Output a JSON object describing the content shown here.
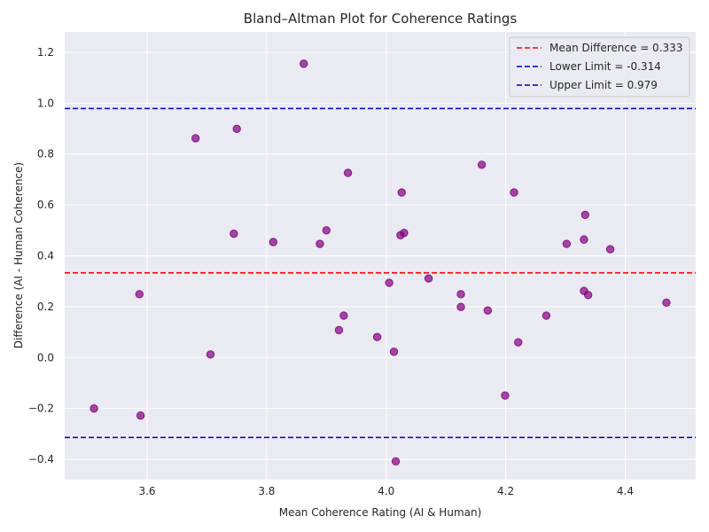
{
  "chart_data": {
    "type": "scatter",
    "title": "Bland–Altman Plot for Coherence Ratings",
    "xlabel": "Mean Coherence Rating (AI & Human)",
    "ylabel": "Difference (AI - Human Coherence)",
    "xlim": [
      3.462,
      4.518
    ],
    "ylim": [
      -0.48,
      1.28
    ],
    "xticks": [
      3.6,
      3.8,
      4.0,
      4.2,
      4.4
    ],
    "yticks": [
      -0.4,
      -0.2,
      0.0,
      0.2,
      0.4,
      0.6,
      0.8,
      1.0,
      1.2
    ],
    "xtick_labels": [
      "3.6",
      "3.8",
      "4.0",
      "4.2",
      "4.4"
    ],
    "ytick_labels": [
      "−0.4",
      "−0.2",
      "0.0",
      "0.2",
      "0.4",
      "0.6",
      "0.8",
      "1.0",
      "1.2"
    ],
    "grid": true,
    "legend_position": "top-right",
    "point_color": "#800080",
    "points": [
      {
        "x": 3.511,
        "y": -0.2
      },
      {
        "x": 3.587,
        "y": 0.249
      },
      {
        "x": 3.589,
        "y": -0.228
      },
      {
        "x": 3.681,
        "y": 0.862
      },
      {
        "x": 3.706,
        "y": 0.012
      },
      {
        "x": 3.745,
        "y": 0.487
      },
      {
        "x": 3.75,
        "y": 0.899
      },
      {
        "x": 3.811,
        "y": 0.454
      },
      {
        "x": 3.862,
        "y": 1.155
      },
      {
        "x": 3.889,
        "y": 0.447
      },
      {
        "x": 3.9,
        "y": 0.5
      },
      {
        "x": 3.921,
        "y": 0.108
      },
      {
        "x": 3.929,
        "y": 0.165
      },
      {
        "x": 3.936,
        "y": 0.726
      },
      {
        "x": 3.985,
        "y": 0.081
      },
      {
        "x": 4.005,
        "y": 0.294
      },
      {
        "x": 4.013,
        "y": 0.023
      },
      {
        "x": 4.016,
        "y": -0.408
      },
      {
        "x": 4.024,
        "y": 0.481
      },
      {
        "x": 4.026,
        "y": 0.649
      },
      {
        "x": 4.03,
        "y": 0.49
      },
      {
        "x": 4.071,
        "y": 0.311
      },
      {
        "x": 4.125,
        "y": 0.249
      },
      {
        "x": 4.125,
        "y": 0.199
      },
      {
        "x": 4.16,
        "y": 0.758
      },
      {
        "x": 4.17,
        "y": 0.185
      },
      {
        "x": 4.199,
        "y": -0.149
      },
      {
        "x": 4.214,
        "y": 0.649
      },
      {
        "x": 4.221,
        "y": 0.06
      },
      {
        "x": 4.268,
        "y": 0.165
      },
      {
        "x": 4.302,
        "y": 0.447
      },
      {
        "x": 4.331,
        "y": 0.464
      },
      {
        "x": 4.331,
        "y": 0.262
      },
      {
        "x": 4.333,
        "y": 0.561
      },
      {
        "x": 4.338,
        "y": 0.246
      },
      {
        "x": 4.375,
        "y": 0.426
      },
      {
        "x": 4.469,
        "y": 0.216
      }
    ],
    "reference_lines": [
      {
        "name": "Mean Difference = 0.333",
        "y": 0.333,
        "color": "#ff0000"
      },
      {
        "name": "Lower Limit = -0.314",
        "y": -0.314,
        "color": "#0000cc"
      },
      {
        "name": "Upper Limit = 0.979",
        "y": 0.979,
        "color": "#0000cc"
      }
    ]
  }
}
